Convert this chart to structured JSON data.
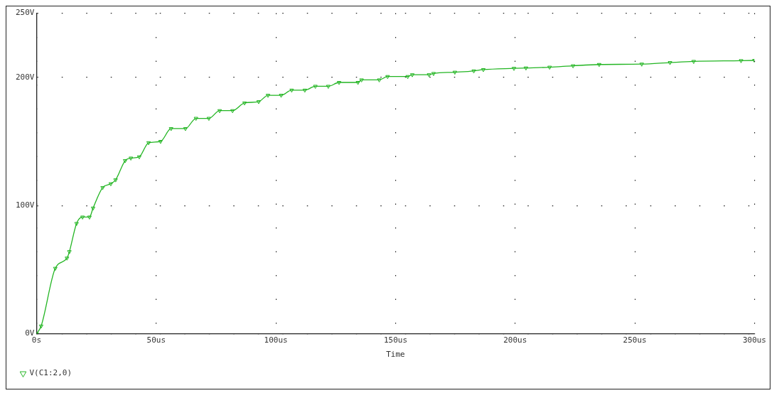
{
  "chart_data": {
    "type": "line",
    "xlabel": "Time",
    "xlim": [
      0,
      300
    ],
    "ylim": [
      0,
      250
    ],
    "xticks": [
      {
        "value": 0,
        "label": "0s"
      },
      {
        "value": 50,
        "label": "50us"
      },
      {
        "value": 100,
        "label": "100us"
      },
      {
        "value": 150,
        "label": "150us"
      },
      {
        "value": 200,
        "label": "200us"
      },
      {
        "value": 250,
        "label": "250us"
      },
      {
        "value": 300,
        "label": "300us"
      }
    ],
    "yticks": [
      {
        "value": 0,
        "label": "0V"
      },
      {
        "value": 100,
        "label": "100V"
      },
      {
        "value": 200,
        "label": "200V"
      },
      {
        "value": 250,
        "label": "250V"
      }
    ],
    "grid": true,
    "legend": "bottom left",
    "marker": "triangle",
    "line_style": "solid",
    "series": [
      {
        "name": "V(C1:2,0)",
        "color": "#22b522",
        "x": [
          0,
          1.9,
          7.8,
          12.7,
          13.7,
          16.7,
          19.2,
          22.1,
          23.6,
          27.6,
          31,
          33,
          37,
          39.4,
          42.9,
          46.8,
          51.8,
          56.2,
          62.2,
          66.6,
          72,
          76.5,
          81.9,
          86.9,
          92.8,
          96.7,
          102.2,
          106.6,
          112.1,
          116.5,
          121.9,
          126.4,
          134.3,
          135.8,
          143.2,
          146.7,
          155.1,
          157,
          164,
          165.9,
          174.8,
          182.7,
          186.7,
          199.5,
          204.5,
          214.4,
          224.2,
          235.1,
          252.9,
          264.7,
          274.6,
          294.4,
          300
        ],
        "values": [
          0,
          6,
          51,
          59,
          64,
          86,
          91,
          91,
          98,
          114,
          117,
          120,
          135,
          137,
          138,
          149,
          150,
          160,
          160,
          168,
          168,
          174,
          174,
          180,
          181,
          186,
          186,
          190,
          190,
          193,
          193,
          196,
          196,
          198,
          198,
          200.6,
          200.6,
          202,
          202,
          203,
          204,
          205,
          206,
          207,
          207.3,
          207.9,
          209,
          210,
          210.3,
          211.5,
          212.4,
          213,
          213.2
        ]
      }
    ]
  }
}
